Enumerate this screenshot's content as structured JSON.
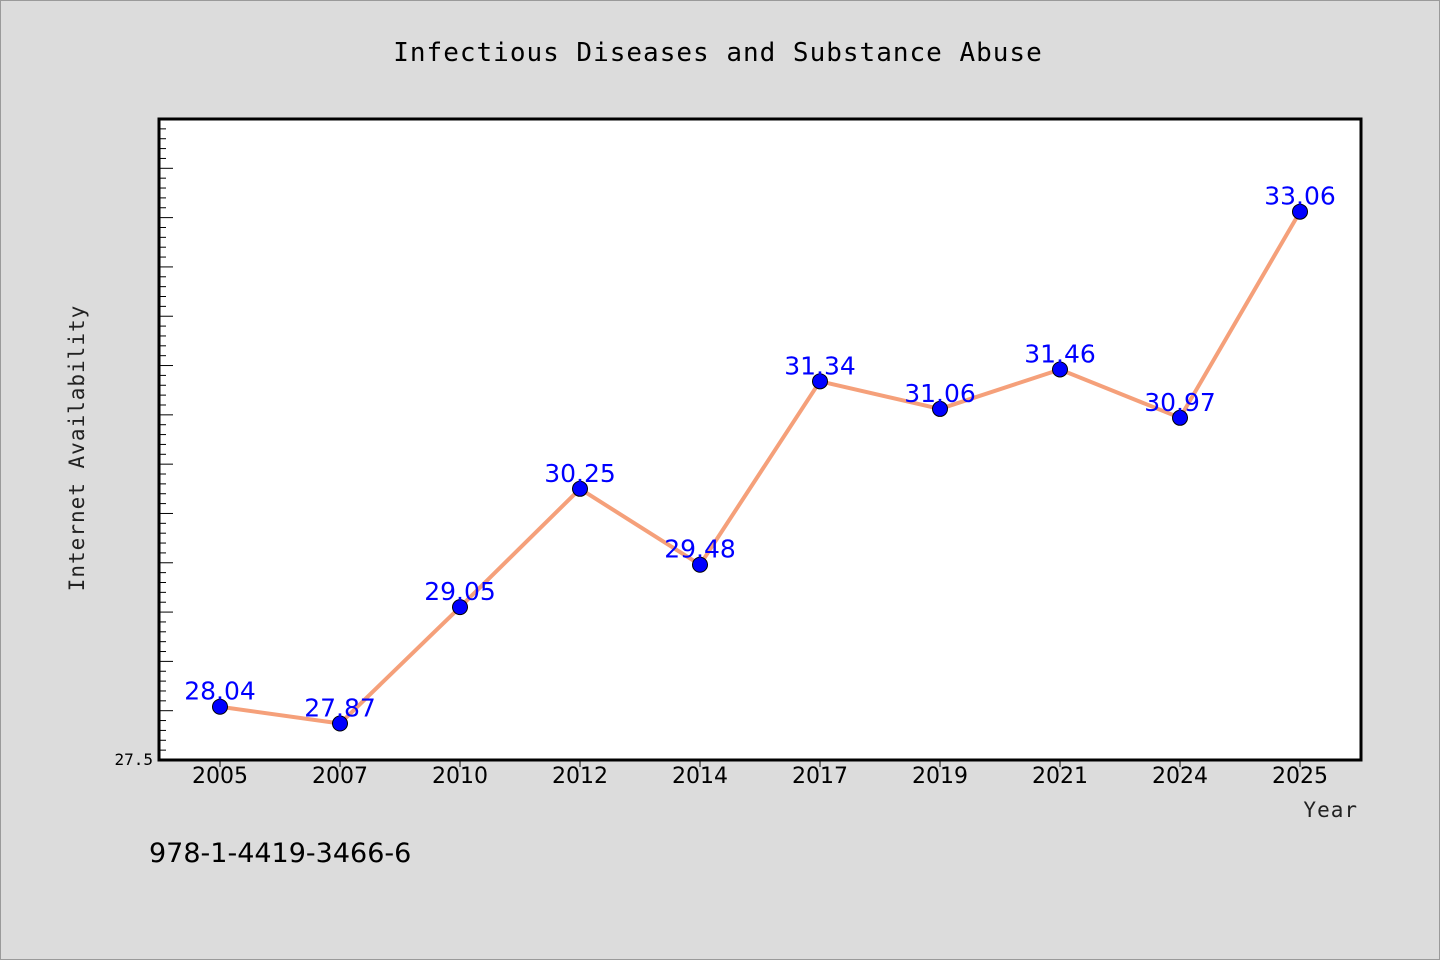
{
  "chart_data": {
    "type": "line",
    "title": "Infectious Diseases and Substance Abuse",
    "xlabel": "Year",
    "ylabel": "Internet Availability",
    "categories": [
      "2005",
      "2007",
      "2010",
      "2012",
      "2014",
      "2017",
      "2019",
      "2021",
      "2024",
      "2025"
    ],
    "series": [
      {
        "values": [
          28.04,
          27.87,
          29.05,
          30.25,
          29.48,
          31.34,
          31.06,
          31.46,
          30.97,
          33.06
        ]
      }
    ],
    "data_labels": [
      "28.04",
      "27.87",
      "29.05",
      "30.25",
      "29.48",
      "31.34",
      "31.06",
      "31.46",
      "30.97",
      "33.06"
    ],
    "ylim": [
      27.5,
      34.0
    ],
    "ytick_labels": [
      "27.5"
    ],
    "y_minor_tick_step": 0.1,
    "y_major_tick_step": 0.5,
    "grid": false,
    "legend": "none",
    "colors": {
      "line": "#f5a07a",
      "marker": "#0000ff",
      "data_label": "#0000ff",
      "background": "#dcdcdc",
      "plot_background": "#ffffff"
    }
  },
  "footer": {
    "isbn": "978-1-4419-3466-6"
  }
}
